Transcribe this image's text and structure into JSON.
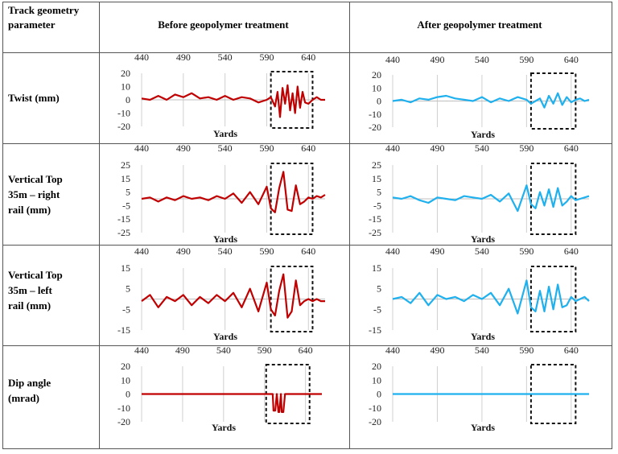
{
  "table": {
    "header_param": "Track geometry parameter",
    "header_before": "Before geopolymer treatment",
    "header_after": "After geopolymer treatment"
  },
  "rows": [
    {
      "label_lines": [
        "Twist (mm)"
      ]
    },
    {
      "label_lines": [
        "Vertical Top",
        "35m – right",
        "rail (mm)"
      ]
    },
    {
      "label_lines": [
        "Vertical Top",
        "35m – left",
        "rail (mm)"
      ]
    },
    {
      "label_lines": [
        "Dip angle",
        "(mrad)"
      ]
    }
  ],
  "colors": {
    "before": "#c00000",
    "after": "#1fb0ee"
  },
  "chart_data": [
    {
      "type": "line",
      "id": "twist-before",
      "xlabel": "Yards",
      "x_ticks": [
        440,
        490,
        540,
        590,
        640
      ],
      "y_ticks": [
        20,
        10,
        0,
        -10,
        -20
      ],
      "ylim": [
        -20,
        20
      ],
      "xlim": [
        440,
        660
      ],
      "highlight_range": [
        595,
        645
      ],
      "x": [
        440,
        450,
        460,
        470,
        480,
        490,
        500,
        510,
        520,
        530,
        540,
        550,
        560,
        570,
        580,
        590,
        595,
        600,
        603,
        606,
        609,
        612,
        615,
        618,
        621,
        624,
        627,
        630,
        633,
        636,
        640,
        645,
        650,
        655,
        660
      ],
      "y": [
        1,
        0,
        3,
        0,
        4,
        2,
        5,
        1,
        2,
        0,
        3,
        0,
        2,
        1,
        -2,
        0,
        2,
        -5,
        6,
        -13,
        9,
        -3,
        11,
        -8,
        5,
        -10,
        10,
        -6,
        6,
        -2,
        -3,
        0,
        2,
        0,
        0
      ]
    },
    {
      "type": "line",
      "id": "twist-after",
      "xlabel": "Yards",
      "x_ticks": [
        440,
        490,
        540,
        590,
        640
      ],
      "y_ticks": [
        20,
        10,
        0,
        -10,
        -20
      ],
      "ylim": [
        -20,
        20
      ],
      "xlim": [
        440,
        660
      ],
      "highlight_range": [
        595,
        645
      ],
      "x": [
        440,
        450,
        460,
        470,
        480,
        490,
        500,
        510,
        520,
        530,
        540,
        550,
        560,
        570,
        580,
        590,
        595,
        600,
        605,
        610,
        615,
        620,
        625,
        630,
        635,
        640,
        645,
        650,
        655,
        660
      ],
      "y": [
        0,
        1,
        -1,
        2,
        1,
        3,
        4,
        2,
        1,
        0,
        3,
        -1,
        2,
        0,
        3,
        1,
        -2,
        0,
        2,
        -5,
        4,
        -2,
        6,
        -3,
        3,
        -1,
        1,
        2,
        0,
        1
      ]
    },
    {
      "type": "line",
      "id": "vtr-before",
      "xlabel": "Yards",
      "x_ticks": [
        440,
        490,
        540,
        590,
        640
      ],
      "y_ticks": [
        25,
        15,
        5,
        -5,
        -15,
        -25
      ],
      "ylim": [
        -25,
        25
      ],
      "xlim": [
        440,
        660
      ],
      "highlight_range": [
        595,
        645
      ],
      "x": [
        440,
        450,
        460,
        470,
        480,
        490,
        500,
        510,
        520,
        530,
        540,
        550,
        560,
        570,
        580,
        590,
        595,
        600,
        605,
        610,
        615,
        620,
        625,
        630,
        635,
        640,
        645,
        650,
        655,
        660
      ],
      "y": [
        0,
        1,
        -2,
        1,
        -1,
        2,
        0,
        1,
        -1,
        2,
        0,
        4,
        -3,
        5,
        -4,
        9,
        -7,
        -10,
        8,
        20,
        -8,
        -9,
        10,
        -4,
        -2,
        1,
        0,
        2,
        1,
        3
      ]
    },
    {
      "type": "line",
      "id": "vtr-after",
      "xlabel": "Yards",
      "x_ticks": [
        440,
        490,
        540,
        590,
        640
      ],
      "y_ticks": [
        25,
        15,
        5,
        -5,
        -15,
        -25
      ],
      "ylim": [
        -25,
        25
      ],
      "xlim": [
        440,
        660
      ],
      "highlight_range": [
        595,
        645
      ],
      "x": [
        440,
        450,
        460,
        470,
        480,
        490,
        500,
        510,
        520,
        530,
        540,
        550,
        560,
        570,
        580,
        590,
        595,
        600,
        605,
        610,
        615,
        620,
        625,
        630,
        635,
        640,
        645,
        650,
        655,
        660
      ],
      "y": [
        1,
        0,
        2,
        -1,
        -3,
        1,
        0,
        -1,
        2,
        1,
        0,
        3,
        -2,
        4,
        -9,
        10,
        -4,
        -7,
        5,
        -5,
        7,
        -6,
        8,
        -5,
        -2,
        2,
        -1,
        0,
        1,
        2
      ]
    },
    {
      "type": "line",
      "id": "vtl-before",
      "xlabel": "Yards",
      "x_ticks": [
        440,
        490,
        540,
        590,
        640
      ],
      "y_ticks": [
        15,
        5,
        -5,
        -15
      ],
      "ylim": [
        -15,
        15
      ],
      "xlim": [
        440,
        660
      ],
      "highlight_range": [
        595,
        645
      ],
      "x": [
        440,
        450,
        460,
        470,
        480,
        490,
        500,
        510,
        520,
        530,
        540,
        550,
        560,
        570,
        580,
        590,
        595,
        600,
        605,
        610,
        615,
        620,
        625,
        630,
        635,
        640,
        645,
        650,
        655,
        660
      ],
      "y": [
        -1,
        2,
        -4,
        1,
        -1,
        2,
        -3,
        1,
        -2,
        2,
        -1,
        3,
        -4,
        5,
        -6,
        8,
        -5,
        -8,
        4,
        12,
        -9,
        -6,
        9,
        -3,
        -1,
        0,
        -1,
        0,
        -1,
        -1
      ]
    },
    {
      "type": "line",
      "id": "vtl-after",
      "xlabel": "Yards",
      "x_ticks": [
        440,
        490,
        540,
        590,
        640
      ],
      "y_ticks": [
        15,
        5,
        -5,
        -15
      ],
      "ylim": [
        -15,
        15
      ],
      "xlim": [
        440,
        660
      ],
      "highlight_range": [
        595,
        645
      ],
      "x": [
        440,
        450,
        460,
        470,
        480,
        490,
        500,
        510,
        520,
        530,
        540,
        550,
        560,
        570,
        580,
        590,
        595,
        600,
        605,
        610,
        615,
        620,
        625,
        630,
        635,
        640,
        645,
        650,
        655,
        660
      ],
      "y": [
        0,
        1,
        -2,
        3,
        -3,
        2,
        0,
        1,
        -1,
        2,
        0,
        3,
        -3,
        5,
        -7,
        9,
        -4,
        -6,
        4,
        -6,
        6,
        -5,
        7,
        -4,
        -3,
        1,
        -1,
        0,
        1,
        -1
      ]
    },
    {
      "type": "line",
      "id": "dip-before",
      "xlabel": "Yards",
      "x_ticks": [
        440,
        490,
        540,
        590,
        640
      ],
      "y_ticks": [
        20,
        10,
        0,
        -10,
        -20
      ],
      "ylim": [
        -20,
        20
      ],
      "xlim": [
        440,
        660
      ],
      "highlight_range": [
        592,
        645
      ],
      "x": [
        440,
        600,
        601,
        603,
        605,
        607,
        608,
        610,
        611,
        613,
        615,
        660
      ],
      "y": [
        0,
        0,
        -12,
        -12,
        0,
        -13,
        -13,
        0,
        -13,
        -13,
        0,
        0
      ]
    },
    {
      "type": "line",
      "id": "dip-after",
      "xlabel": "Yards",
      "x_ticks": [
        440,
        490,
        540,
        590,
        640
      ],
      "y_ticks": [
        20,
        10,
        0,
        -10,
        -20
      ],
      "ylim": [
        -20,
        20
      ],
      "xlim": [
        440,
        660
      ],
      "highlight_range": [
        595,
        645
      ],
      "x": [
        440,
        660
      ],
      "y": [
        0,
        0
      ]
    }
  ]
}
